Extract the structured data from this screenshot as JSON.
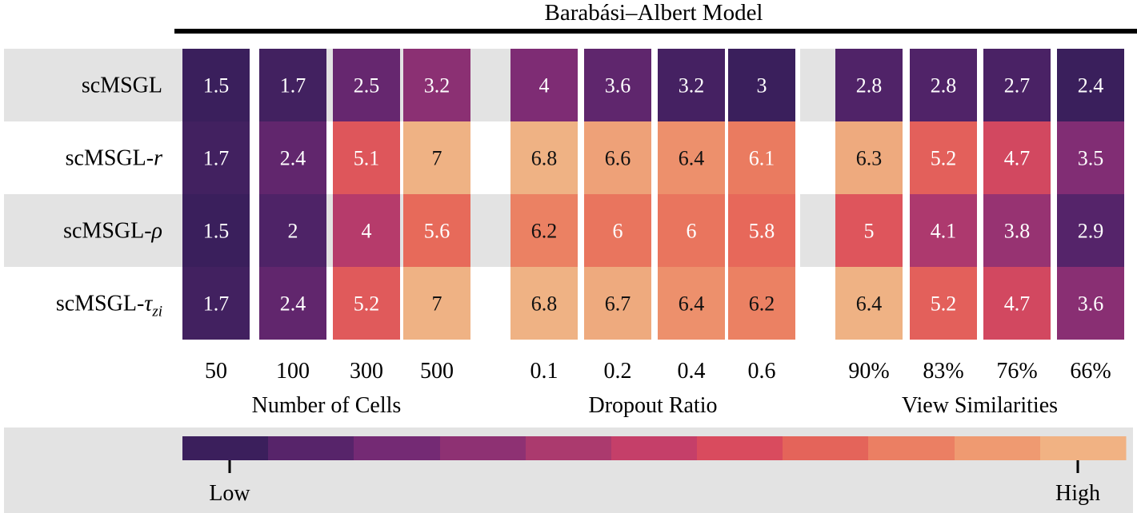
{
  "chart_data": {
    "type": "heatmap",
    "title": "Barabási–Albert Model",
    "rows": [
      {
        "label": "scMSGL",
        "suffix": ""
      },
      {
        "label": "scMSGL-",
        "suffix": "r"
      },
      {
        "label": "scMSGL-",
        "suffix": "ρ"
      },
      {
        "label": "scMSGL-",
        "suffix": "τ",
        "subscript": "zi"
      }
    ],
    "groups": [
      {
        "xlabel": "Number of Cells",
        "columns": [
          "50",
          "100",
          "300",
          "500"
        ]
      },
      {
        "xlabel": "Dropout Ratio",
        "columns": [
          "0.1",
          "0.2",
          "0.4",
          "0.6"
        ]
      },
      {
        "xlabel": "View Similarities",
        "columns": [
          "90%",
          "83%",
          "76%",
          "66%"
        ]
      }
    ],
    "values": [
      [
        1.5,
        1.7,
        2.5,
        3.2,
        4,
        3.6,
        3.2,
        3,
        2.8,
        2.8,
        2.7,
        2.4
      ],
      [
        1.7,
        2.4,
        5.1,
        7,
        6.8,
        6.6,
        6.4,
        6.1,
        6.3,
        5.2,
        4.7,
        3.5
      ],
      [
        1.5,
        2,
        4,
        5.6,
        6.2,
        6,
        6,
        5.8,
        5,
        4.1,
        3.8,
        2.9
      ],
      [
        1.7,
        2.4,
        5.2,
        7,
        6.8,
        6.7,
        6.4,
        6.2,
        6.4,
        5.2,
        4.7,
        3.6
      ]
    ],
    "group_ranges": [
      [
        1.5,
        7
      ],
      [
        3,
        6.8
      ],
      [
        2.4,
        6.4
      ]
    ],
    "colorbar": {
      "low_label": "Low",
      "high_label": "High",
      "colors": [
        "#3b1f5c",
        "#57246a",
        "#742a74",
        "#8e3173",
        "#ab3a6e",
        "#c53f69",
        "#d94b5e",
        "#e4645a",
        "#eb7f63",
        "#ef9a71",
        "#f1b283"
      ]
    }
  }
}
